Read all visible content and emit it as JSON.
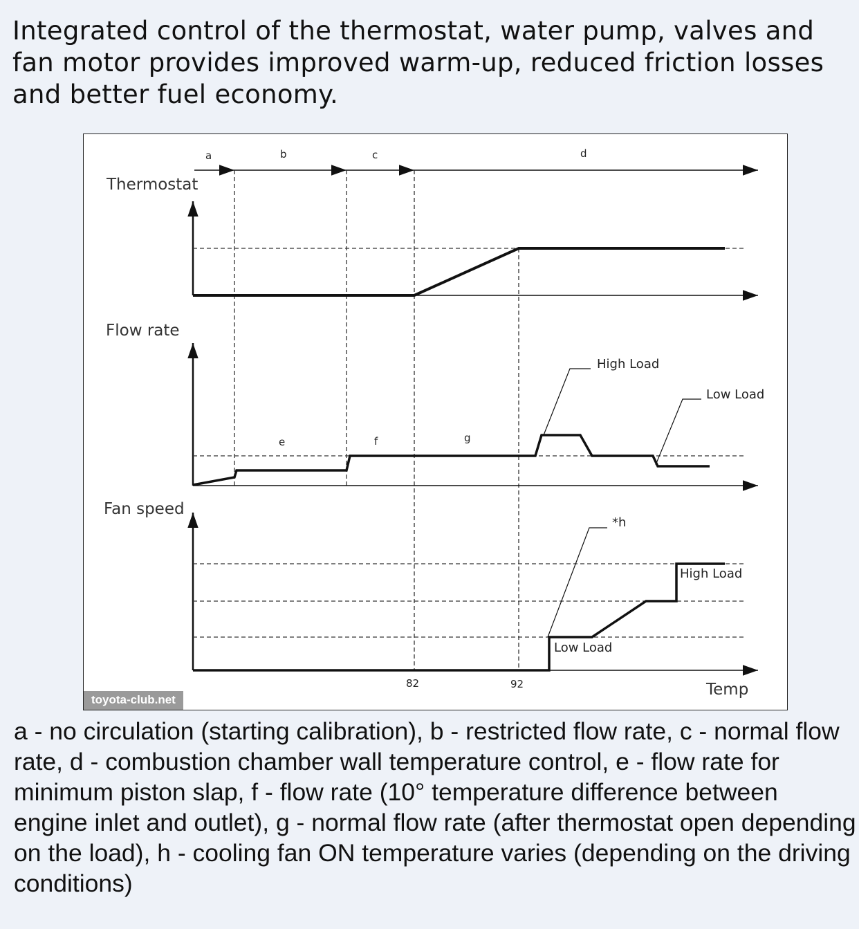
{
  "intro_text": "Integrated control of the thermostat, water pump, valves and fan motor provides improved warm-up, reduced friction losses and better fuel economy.",
  "diagram": {
    "phases": [
      "a",
      "b",
      "c",
      "d"
    ],
    "axes": {
      "thermostat": "Thermostat",
      "flow_rate": "Flow rate",
      "fan_speed": "Fan speed",
      "x": "Temp"
    },
    "region_labels": {
      "e": "e",
      "f": "f",
      "g": "g"
    },
    "temp_ticks": [
      "82",
      "92"
    ],
    "callouts": {
      "flow_high_load": "High Load",
      "flow_low_load": "Low Load",
      "fan_h": "*h",
      "fan_high_load": "High Load",
      "fan_low_load": "Low Load"
    },
    "watermark": "toyota-club.net"
  },
  "legend_text": "a - no circulation (starting calibration), b - restricted flow rate, c - normal flow rate, d - combustion chamber wall temperature control, e - flow rate for minimum piston slap, f - flow rate (10° temperature difference between engine inlet and outlet), g - normal flow rate (after thermostat open depending on the load), h - cooling fan ON temperature varies (depending on the driving conditions)"
}
